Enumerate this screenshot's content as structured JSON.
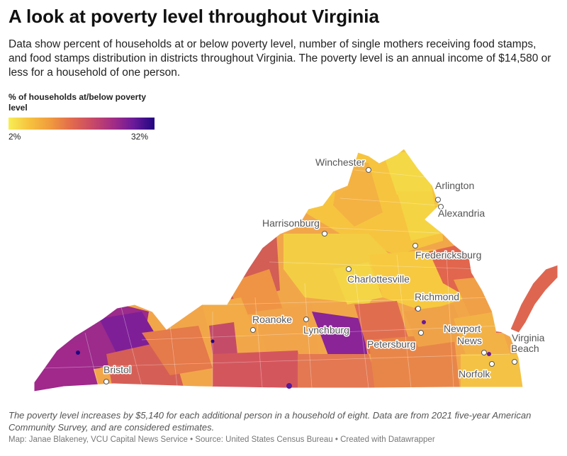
{
  "header": {
    "title": "A look at poverty level throughout Virginia",
    "subtitle": "Data show percent of households at or below poverty level, number of single mothers receiving food stamps, and food stamps distribution in districts throughout Virginia. The poverty level is an annual income of $14,580 or less for a household of one person."
  },
  "legend": {
    "title": "% of households at/below poverty level",
    "min_label": "2%",
    "max_label": "32%",
    "min_value": 2,
    "max_value": 32,
    "colors": [
      "#f7ee55",
      "#f6c23e",
      "#f09b3e",
      "#e26b4c",
      "#c94a66",
      "#a42d85",
      "#6a1a9a",
      "#200680"
    ]
  },
  "map": {
    "region": "Virginia",
    "cities": [
      {
        "name": "Winchester"
      },
      {
        "name": "Arlington"
      },
      {
        "name": "Alexandria"
      },
      {
        "name": "Harrisonburg"
      },
      {
        "name": "Fredericksburg"
      },
      {
        "name": "Charlottesville"
      },
      {
        "name": "Richmond"
      },
      {
        "name": "Roanoke"
      },
      {
        "name": "Lynchburg"
      },
      {
        "name": "Newport News"
      },
      {
        "name": "Virginia Beach"
      },
      {
        "name": "Petersburg"
      },
      {
        "name": "Bristol"
      },
      {
        "name": "Norfolk"
      }
    ]
  },
  "footer": {
    "note": "The poverty level increases by $5,140 for each additional person in a household of eight. Data are from 2021 five-year American Community Survey, and are considered estimates.",
    "credit": "Map: Janae Blakeney, VCU Capital News Service • Source: United States Census Bureau • Created with Datawrapper"
  }
}
